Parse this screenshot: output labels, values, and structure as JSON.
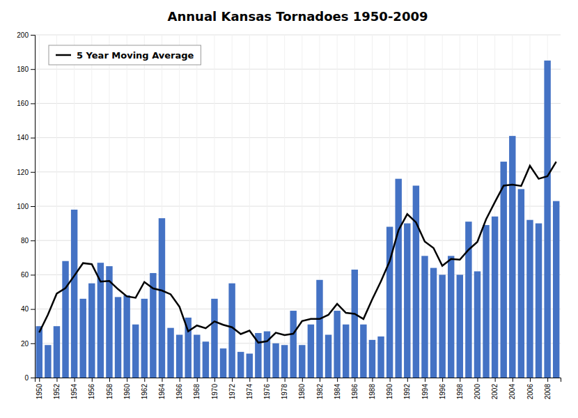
{
  "chart_data": {
    "type": "bar",
    "title": "Annual Kansas Tornadoes 1950-2009",
    "x": [
      1950,
      1951,
      1952,
      1953,
      1954,
      1955,
      1956,
      1957,
      1958,
      1959,
      1960,
      1961,
      1962,
      1963,
      1964,
      1965,
      1966,
      1967,
      1968,
      1969,
      1970,
      1971,
      1972,
      1973,
      1974,
      1975,
      1976,
      1977,
      1978,
      1979,
      1980,
      1981,
      1982,
      1983,
      1984,
      1985,
      1986,
      1987,
      1988,
      1989,
      1990,
      1991,
      1992,
      1993,
      1994,
      1995,
      1996,
      1997,
      1998,
      1999,
      2000,
      2001,
      2002,
      2003,
      2004,
      2005,
      2006,
      2007,
      2008,
      2009
    ],
    "xlim": [
      1949.5,
      2009.5
    ],
    "xticks": [
      1950,
      1952,
      1954,
      1956,
      1958,
      1960,
      1962,
      1964,
      1966,
      1968,
      1970,
      1972,
      1974,
      1976,
      1978,
      1980,
      1982,
      1984,
      1986,
      1988,
      1990,
      1992,
      1994,
      1996,
      1998,
      2000,
      2002,
      2004,
      2006,
      2008
    ],
    "ylim": [
      0,
      200
    ],
    "yticks": [
      0,
      20,
      40,
      60,
      80,
      100,
      120,
      140,
      160,
      180,
      200
    ],
    "grid": true,
    "legend": "upper left",
    "series": [
      {
        "type": "bar",
        "color": "#4472C4",
        "values": [
          30,
          19,
          30,
          68,
          98,
          46,
          55,
          67,
          65,
          47,
          48,
          31,
          46,
          61,
          93,
          29,
          25,
          35,
          25,
          21,
          46,
          17,
          55,
          15,
          14,
          26,
          27,
          20,
          19,
          39,
          19,
          31,
          57,
          25,
          39,
          31,
          63,
          31,
          22,
          24,
          88,
          116,
          90,
          112,
          71,
          64,
          60,
          71,
          60,
          91,
          62,
          89,
          94,
          126,
          141,
          110,
          92,
          90,
          185,
          103
        ]
      },
      {
        "type": "line",
        "name": "5 Year Moving Average",
        "color": "#000000",
        "values": [
          26.333333333333332,
          36.75,
          49.0,
          52.2,
          59.4,
          66.8,
          66.2,
          56.0,
          56.4,
          51.6,
          47.4,
          46.6,
          55.8,
          52.0,
          50.8,
          48.6,
          41.4,
          27.0,
          30.4,
          28.8,
          32.8,
          30.8,
          29.4,
          25.4,
          27.4,
          20.4,
          21.2,
          26.2,
          24.8,
          25.6,
          33.0,
          34.2,
          34.2,
          36.6,
          43.0,
          37.8,
          37.2,
          34.2,
          45.6,
          56.2,
          68.0,
          86.0,
          95.4,
          90.6,
          79.4,
          75.6,
          65.2,
          69.2,
          68.8,
          74.6,
          79.2,
          92.4,
          102.4,
          112.0,
          112.6,
          111.8,
          123.6,
          116.0,
          117.5,
          126.0
        ]
      }
    ]
  }
}
